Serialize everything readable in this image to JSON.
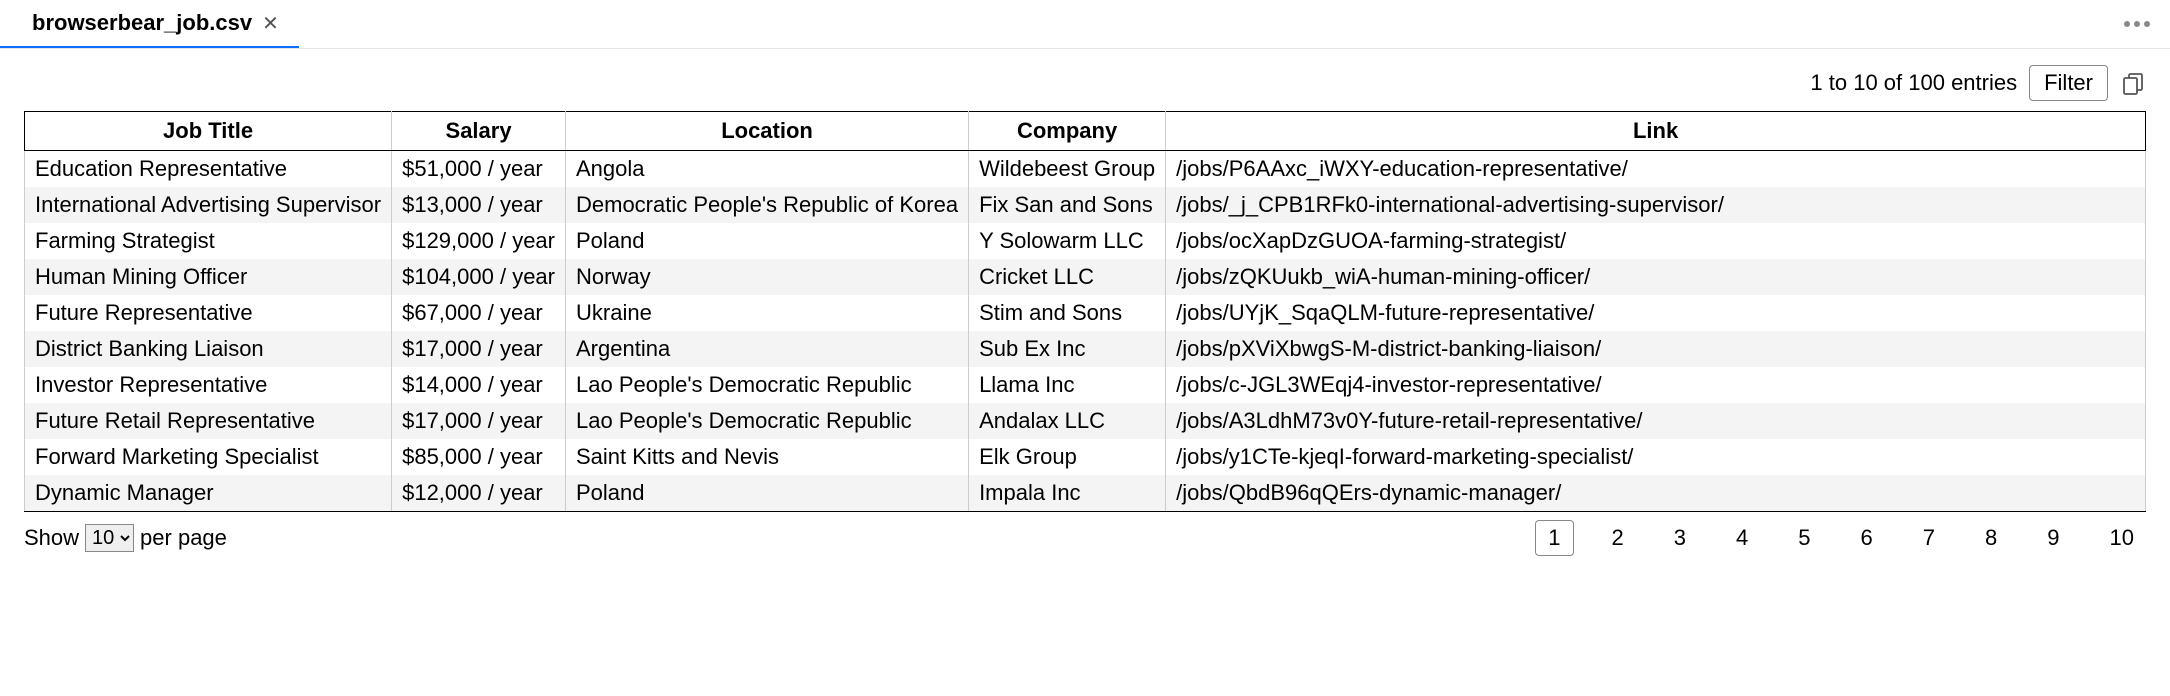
{
  "tab": {
    "title": "browserbear_job.csv"
  },
  "toolbar": {
    "entries_text": "1 to 10 of 100 entries",
    "filter_label": "Filter"
  },
  "table": {
    "columns": [
      "Job Title",
      "Salary",
      "Location",
      "Company",
      "Link"
    ],
    "rows": [
      [
        "Education Representative",
        "$51,000 / year",
        "Angola",
        "Wildebeest Group",
        "/jobs/P6AAxc_iWXY-education-representative/"
      ],
      [
        "International Advertising Supervisor",
        "$13,000 / year",
        "Democratic People's Republic of Korea",
        "Fix San and Sons",
        "/jobs/_j_CPB1RFk0-international-advertising-supervisor/"
      ],
      [
        "Farming Strategist",
        "$129,000 / year",
        "Poland",
        "Y Solowarm LLC",
        "/jobs/ocXapDzGUOA-farming-strategist/"
      ],
      [
        "Human Mining Officer",
        "$104,000 / year",
        "Norway",
        "Cricket LLC",
        "/jobs/zQKUukb_wiA-human-mining-officer/"
      ],
      [
        "Future Representative",
        "$67,000 / year",
        "Ukraine",
        "Stim and Sons",
        "/jobs/UYjK_SqaQLM-future-representative/"
      ],
      [
        "District Banking Liaison",
        "$17,000 / year",
        "Argentina",
        "Sub Ex Inc",
        "/jobs/pXViXbwgS-M-district-banking-liaison/"
      ],
      [
        "Investor Representative",
        "$14,000 / year",
        "Lao People's Democratic Republic",
        "Llama Inc",
        "/jobs/c-JGL3WEqj4-investor-representative/"
      ],
      [
        "Future Retail Representative",
        "$17,000 / year",
        "Lao People's Democratic Republic",
        "Andalax LLC",
        "/jobs/A3LdhM73v0Y-future-retail-representative/"
      ],
      [
        "Forward Marketing Specialist",
        "$85,000 / year",
        "Saint Kitts and Nevis",
        "Elk Group",
        "/jobs/y1CTe-kjeqI-forward-marketing-specialist/"
      ],
      [
        "Dynamic Manager",
        "$12,000 / year",
        "Poland",
        "Impala Inc",
        "/jobs/QbdB96qQErs-dynamic-manager/"
      ]
    ]
  },
  "footer": {
    "show_label": "Show",
    "per_page_label": "per page",
    "page_size_options": [
      "10"
    ],
    "page_size_selected": "10",
    "pages": [
      "1",
      "2",
      "3",
      "4",
      "5",
      "6",
      "7",
      "8",
      "9",
      "10"
    ],
    "active_page": "1"
  },
  "colors": {
    "tab_underline": "#0d6efd",
    "border_strong": "#000000",
    "border_soft": "#cccccc",
    "row_alt_bg": "#f4f4f4",
    "background": "#ffffff"
  }
}
